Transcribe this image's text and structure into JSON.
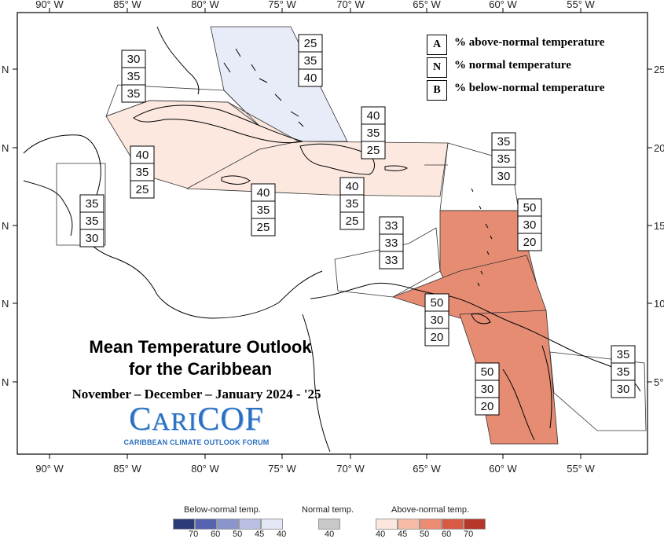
{
  "axes": {
    "x_top": [
      "90° W",
      "85° W",
      "80° W",
      "75° W",
      "70° W",
      "65° W",
      "60° W",
      "55° W"
    ],
    "x_bottom": [
      "90° W",
      "85° W",
      "80° W",
      "75° W",
      "70° W",
      "65° W",
      "60° W",
      "55° W"
    ],
    "y_left": [
      "N",
      "N",
      "N",
      "N",
      "N"
    ],
    "y_right": [
      "25°",
      "20°",
      "15°",
      "10°",
      "5°"
    ]
  },
  "legend": {
    "items": [
      {
        "letter": "A",
        "text": "% above-normal temperature"
      },
      {
        "letter": "N",
        "text": "% normal temperature"
      },
      {
        "letter": "B",
        "text": "% below-normal temperature"
      }
    ]
  },
  "title": {
    "line1": "Mean Temperature Outlook",
    "line2": "for the Caribbean",
    "period": "November – December – January 2024 - '25"
  },
  "logo": {
    "main_a": "C",
    "main_b": "ARI",
    "main_c": "COF",
    "sub": "CARIBBEAN CLIMATE OUTLOOK FORUM"
  },
  "colorbar": {
    "below_title": "Below-normal temp.",
    "normal_title": "Normal temp.",
    "above_title": "Above-normal temp.",
    "below_ticks": [
      "70",
      "60",
      "50",
      "45",
      "40"
    ],
    "normal_ticks": [
      "40"
    ],
    "above_ticks": [
      "40",
      "45",
      "50",
      "60",
      "70"
    ],
    "below_colors": [
      "#2b3a78",
      "#5563b0",
      "#8a94cd",
      "#b9c0e4",
      "#e3e7f6"
    ],
    "normal_color": "#c8c8c8",
    "above_colors": [
      "#fde6dd",
      "#f7bba6",
      "#eb8b72",
      "#d85a44",
      "#b7362a"
    ]
  },
  "regions": [
    {
      "id": "bahamas",
      "values": [
        "25",
        "35",
        "40"
      ]
    },
    {
      "id": "western-cuba",
      "values": [
        "30",
        "35",
        "35"
      ]
    },
    {
      "id": "cayman-jamaica-west",
      "values": [
        "40",
        "35",
        "25"
      ]
    },
    {
      "id": "jamaica",
      "values": [
        "40",
        "35",
        "25"
      ]
    },
    {
      "id": "hispaniola-north",
      "values": [
        "40",
        "35",
        "25"
      ]
    },
    {
      "id": "puerto-rico",
      "values": [
        "40",
        "35",
        "25"
      ]
    },
    {
      "id": "northern-leewards",
      "values": [
        "35",
        "35",
        "30"
      ]
    },
    {
      "id": "belize",
      "values": [
        "35",
        "35",
        "30"
      ]
    },
    {
      "id": "abc-islands",
      "values": [
        "33",
        "33",
        "33"
      ]
    },
    {
      "id": "eastern-caribbean",
      "values": [
        "50",
        "30",
        "20"
      ]
    },
    {
      "id": "trinidad",
      "values": [
        "50",
        "30",
        "20"
      ]
    },
    {
      "id": "guyana",
      "values": [
        "50",
        "30",
        "20"
      ]
    },
    {
      "id": "french-guiana",
      "values": [
        "35",
        "35",
        "30"
      ]
    }
  ]
}
